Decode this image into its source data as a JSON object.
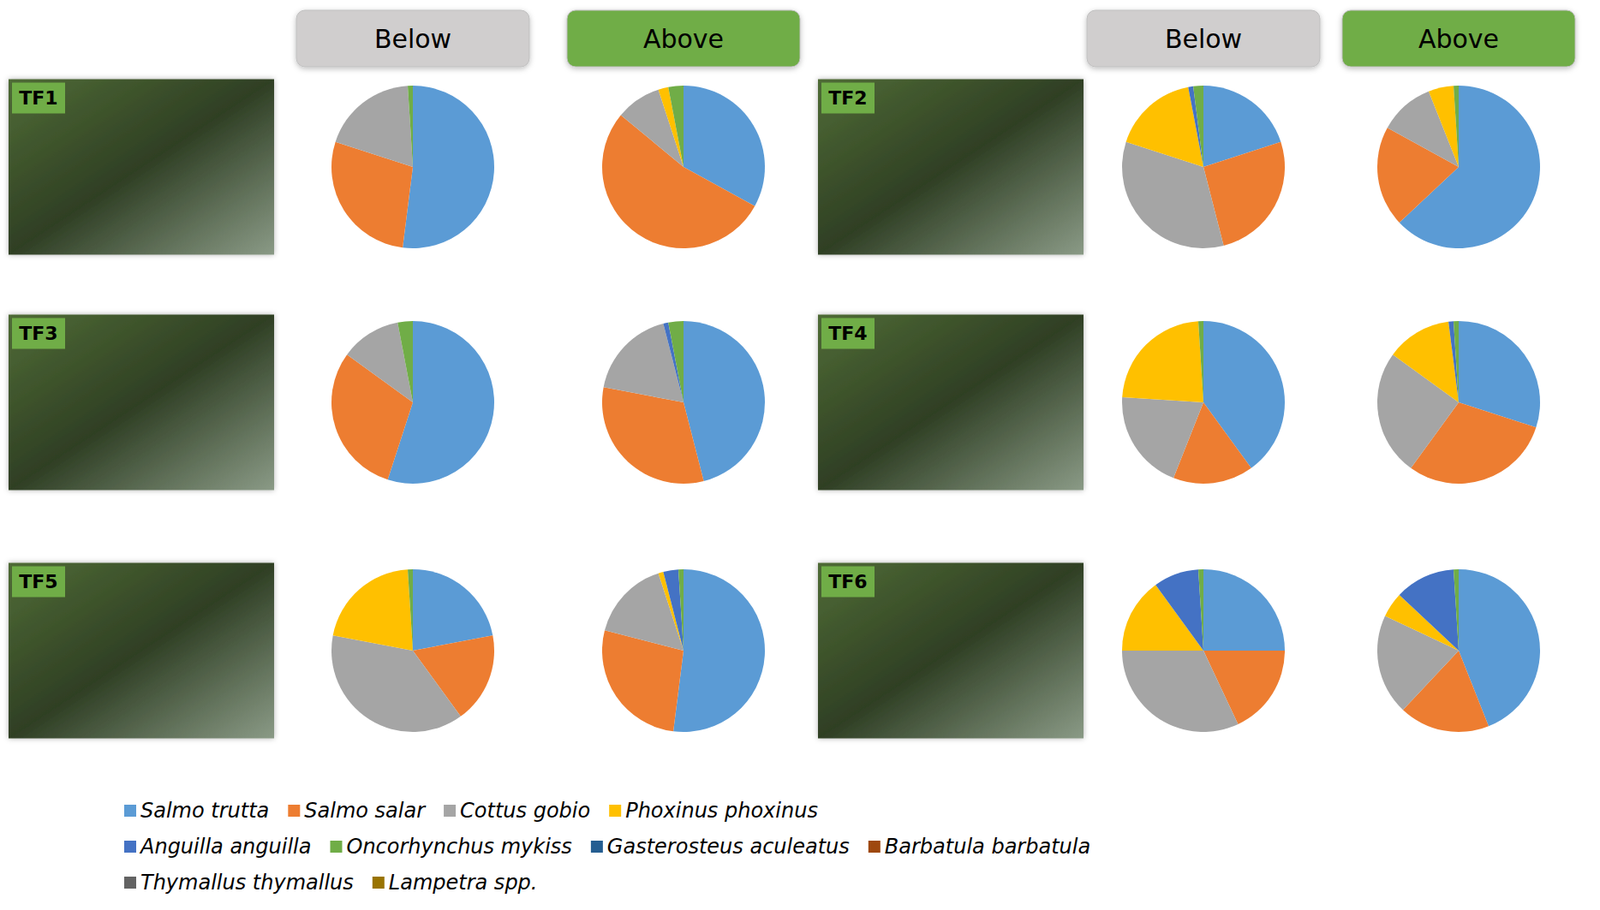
{
  "chart_data": [
    {
      "type": "pie",
      "title": "TF1",
      "subtitle": "Below",
      "legend": "bottom",
      "categories": [
        "Salmo trutta",
        "Salmo salar",
        "Cottus gobio",
        "Phoxinus phoxinus",
        "Anguilla anguilla",
        "Oncorhynchus mykiss",
        "Gasterosteus aculeatus",
        "Barbatula barbatula",
        "Thymallus thymallus",
        "Lampetra spp."
      ],
      "colors": [
        "#5b9bd5",
        "#ed7d31",
        "#a5a5a5",
        "#ffc000",
        "#4472c4",
        "#70ad47",
        "#255e91",
        "#9e480e",
        "#636363",
        "#997300"
      ],
      "values": [
        52,
        28,
        19,
        0,
        0,
        1,
        0,
        0,
        0,
        0
      ]
    },
    {
      "type": "pie",
      "title": "TF1",
      "subtitle": "Above",
      "legend": "bottom",
      "categories": [
        "Salmo trutta",
        "Salmo salar",
        "Cottus gobio",
        "Phoxinus phoxinus",
        "Anguilla anguilla",
        "Oncorhynchus mykiss",
        "Gasterosteus aculeatus",
        "Barbatula barbatula",
        "Thymallus thymallus",
        "Lampetra spp."
      ],
      "colors": [
        "#5b9bd5",
        "#ed7d31",
        "#a5a5a5",
        "#ffc000",
        "#4472c4",
        "#70ad47",
        "#255e91",
        "#9e480e",
        "#636363",
        "#997300"
      ],
      "values": [
        33,
        53,
        9,
        2,
        0,
        3,
        0,
        0,
        0,
        0
      ]
    },
    {
      "type": "pie",
      "title": "TF2",
      "subtitle": "Below",
      "legend": "bottom",
      "categories": [
        "Salmo trutta",
        "Salmo salar",
        "Cottus gobio",
        "Phoxinus phoxinus",
        "Anguilla anguilla",
        "Oncorhynchus mykiss",
        "Gasterosteus aculeatus",
        "Barbatula barbatula",
        "Thymallus thymallus",
        "Lampetra spp."
      ],
      "colors": [
        "#5b9bd5",
        "#ed7d31",
        "#a5a5a5",
        "#ffc000",
        "#4472c4",
        "#70ad47",
        "#255e91",
        "#9e480e",
        "#636363",
        "#997300"
      ],
      "values": [
        20,
        26,
        34,
        17,
        1,
        2,
        0,
        0,
        0,
        0
      ]
    },
    {
      "type": "pie",
      "title": "TF2",
      "subtitle": "Above",
      "legend": "bottom",
      "categories": [
        "Salmo trutta",
        "Salmo salar",
        "Cottus gobio",
        "Phoxinus phoxinus",
        "Anguilla anguilla",
        "Oncorhynchus mykiss",
        "Gasterosteus aculeatus",
        "Barbatula barbatula",
        "Thymallus thymallus",
        "Lampetra spp."
      ],
      "colors": [
        "#5b9bd5",
        "#ed7d31",
        "#a5a5a5",
        "#ffc000",
        "#4472c4",
        "#70ad47",
        "#255e91",
        "#9e480e",
        "#636363",
        "#997300"
      ],
      "values": [
        63,
        20,
        11,
        5,
        0,
        1,
        0,
        0,
        0,
        0
      ]
    },
    {
      "type": "pie",
      "title": "TF3",
      "subtitle": "Below",
      "legend": "bottom",
      "categories": [
        "Salmo trutta",
        "Salmo salar",
        "Cottus gobio",
        "Phoxinus phoxinus",
        "Anguilla anguilla",
        "Oncorhynchus mykiss",
        "Gasterosteus aculeatus",
        "Barbatula barbatula",
        "Thymallus thymallus",
        "Lampetra spp."
      ],
      "colors": [
        "#5b9bd5",
        "#ed7d31",
        "#a5a5a5",
        "#ffc000",
        "#4472c4",
        "#70ad47",
        "#255e91",
        "#9e480e",
        "#636363",
        "#997300"
      ],
      "values": [
        55,
        30,
        12,
        0,
        0,
        3,
        0,
        0,
        0,
        0
      ]
    },
    {
      "type": "pie",
      "title": "TF3",
      "subtitle": "Above",
      "legend": "bottom",
      "categories": [
        "Salmo trutta",
        "Salmo salar",
        "Cottus gobio",
        "Phoxinus phoxinus",
        "Anguilla anguilla",
        "Oncorhynchus mykiss",
        "Gasterosteus aculeatus",
        "Barbatula barbatula",
        "Thymallus thymallus",
        "Lampetra spp."
      ],
      "colors": [
        "#5b9bd5",
        "#ed7d31",
        "#a5a5a5",
        "#ffc000",
        "#4472c4",
        "#70ad47",
        "#255e91",
        "#9e480e",
        "#636363",
        "#997300"
      ],
      "values": [
        46,
        32,
        18,
        0,
        1,
        3,
        0,
        0,
        0,
        0
      ]
    },
    {
      "type": "pie",
      "title": "TF4",
      "subtitle": "Below",
      "legend": "bottom",
      "categories": [
        "Salmo trutta",
        "Salmo salar",
        "Cottus gobio",
        "Phoxinus phoxinus",
        "Anguilla anguilla",
        "Oncorhynchus mykiss",
        "Gasterosteus aculeatus",
        "Barbatula barbatula",
        "Thymallus thymallus",
        "Lampetra spp."
      ],
      "colors": [
        "#5b9bd5",
        "#ed7d31",
        "#a5a5a5",
        "#ffc000",
        "#4472c4",
        "#70ad47",
        "#255e91",
        "#9e480e",
        "#636363",
        "#997300"
      ],
      "values": [
        40,
        16,
        20,
        23,
        0,
        1,
        0,
        0,
        0,
        0
      ]
    },
    {
      "type": "pie",
      "title": "TF4",
      "subtitle": "Above",
      "legend": "bottom",
      "categories": [
        "Salmo trutta",
        "Salmo salar",
        "Cottus gobio",
        "Phoxinus phoxinus",
        "Anguilla anguilla",
        "Oncorhynchus mykiss",
        "Gasterosteus aculeatus",
        "Barbatula barbatula",
        "Thymallus thymallus",
        "Lampetra spp."
      ],
      "colors": [
        "#5b9bd5",
        "#ed7d31",
        "#a5a5a5",
        "#ffc000",
        "#4472c4",
        "#70ad47",
        "#255e91",
        "#9e480e",
        "#636363",
        "#997300"
      ],
      "values": [
        30,
        30,
        25,
        13,
        1,
        1,
        0,
        0,
        0,
        0
      ]
    },
    {
      "type": "pie",
      "title": "TF5",
      "subtitle": "Below",
      "legend": "bottom",
      "categories": [
        "Salmo trutta",
        "Salmo salar",
        "Cottus gobio",
        "Phoxinus phoxinus",
        "Anguilla anguilla",
        "Oncorhynchus mykiss",
        "Gasterosteus aculeatus",
        "Barbatula barbatula",
        "Thymallus thymallus",
        "Lampetra spp."
      ],
      "colors": [
        "#5b9bd5",
        "#ed7d31",
        "#a5a5a5",
        "#ffc000",
        "#4472c4",
        "#70ad47",
        "#255e91",
        "#9e480e",
        "#636363",
        "#997300"
      ],
      "values": [
        22,
        18,
        38,
        21,
        0,
        1,
        0,
        0,
        0,
        0
      ]
    },
    {
      "type": "pie",
      "title": "TF5",
      "subtitle": "Above",
      "legend": "bottom",
      "categories": [
        "Salmo trutta",
        "Salmo salar",
        "Cottus gobio",
        "Phoxinus phoxinus",
        "Anguilla anguilla",
        "Oncorhynchus mykiss",
        "Gasterosteus aculeatus",
        "Barbatula barbatula",
        "Thymallus thymallus",
        "Lampetra spp."
      ],
      "colors": [
        "#5b9bd5",
        "#ed7d31",
        "#a5a5a5",
        "#ffc000",
        "#4472c4",
        "#70ad47",
        "#255e91",
        "#9e480e",
        "#636363",
        "#997300"
      ],
      "values": [
        52,
        27,
        16,
        1,
        3,
        1,
        0,
        0,
        0,
        0
      ]
    },
    {
      "type": "pie",
      "title": "TF6",
      "subtitle": "Below",
      "legend": "bottom",
      "categories": [
        "Salmo trutta",
        "Salmo salar",
        "Cottus gobio",
        "Phoxinus phoxinus",
        "Anguilla anguilla",
        "Oncorhynchus mykiss",
        "Gasterosteus aculeatus",
        "Barbatula barbatula",
        "Thymallus thymallus",
        "Lampetra spp."
      ],
      "colors": [
        "#5b9bd5",
        "#ed7d31",
        "#a5a5a5",
        "#ffc000",
        "#4472c4",
        "#70ad47",
        "#255e91",
        "#9e480e",
        "#636363",
        "#997300"
      ],
      "values": [
        25,
        18,
        32,
        15,
        9,
        1,
        0,
        0,
        0,
        0
      ]
    },
    {
      "type": "pie",
      "title": "TF6",
      "subtitle": "Above",
      "legend": "bottom",
      "categories": [
        "Salmo trutta",
        "Salmo salar",
        "Cottus gobio",
        "Phoxinus phoxinus",
        "Anguilla anguilla",
        "Oncorhynchus mykiss",
        "Gasterosteus aculeatus",
        "Barbatula barbatula",
        "Thymallus thymallus",
        "Lampetra spp."
      ],
      "colors": [
        "#5b9bd5",
        "#ed7d31",
        "#a5a5a5",
        "#ffc000",
        "#4472c4",
        "#70ad47",
        "#255e91",
        "#9e480e",
        "#636363",
        "#997300"
      ],
      "values": [
        44,
        18,
        20,
        5,
        12,
        1,
        0,
        0,
        0,
        0
      ]
    }
  ]
}
